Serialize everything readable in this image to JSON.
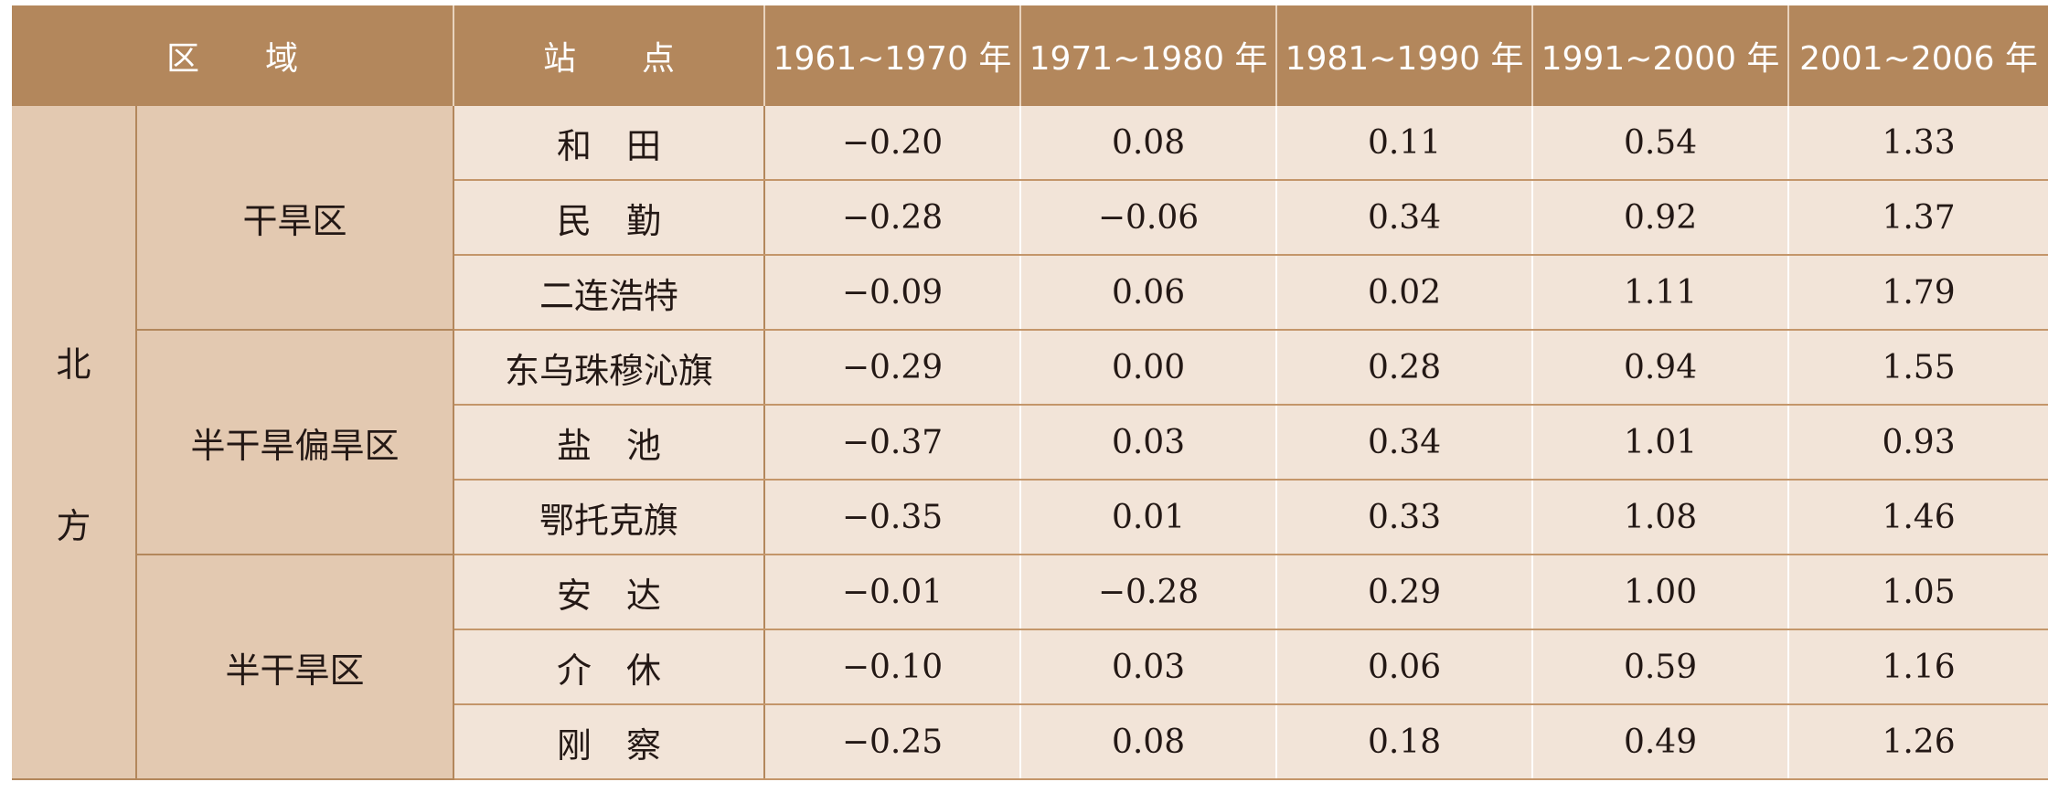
{
  "header": {
    "region": "区　　域",
    "station": "站　　点",
    "periods": [
      "1961~1970 年",
      "1971~1980 年",
      "1981~1990 年",
      "1991~2000 年",
      "2001~2006 年"
    ]
  },
  "table": {
    "macro_region": "北方",
    "groups": [
      {
        "name": "干旱区",
        "rows": [
          {
            "station": "和　田",
            "values": [
              "−0.20",
              "0.08",
              "0.11",
              "0.54",
              "1.33"
            ]
          },
          {
            "station": "民　勤",
            "values": [
              "−0.28",
              "−0.06",
              "0.34",
              "0.92",
              "1.37"
            ]
          },
          {
            "station": "二连浩特",
            "values": [
              "−0.09",
              "0.06",
              "0.02",
              "1.11",
              "1.79"
            ]
          }
        ]
      },
      {
        "name": "半干旱偏旱区",
        "rows": [
          {
            "station": "东乌珠穆沁旗",
            "values": [
              "−0.29",
              "0.00",
              "0.28",
              "0.94",
              "1.55"
            ]
          },
          {
            "station": "盐　池",
            "values": [
              "−0.37",
              "0.03",
              "0.34",
              "1.01",
              "0.93"
            ]
          },
          {
            "station": "鄂托克旗",
            "values": [
              "−0.35",
              "0.01",
              "0.33",
              "1.08",
              "1.46"
            ]
          }
        ]
      },
      {
        "name": "半干旱区",
        "rows": [
          {
            "station": "安　达",
            "values": [
              "−0.01",
              "−0.28",
              "0.29",
              "1.00",
              "1.05"
            ]
          },
          {
            "station": "介　休",
            "values": [
              "−0.10",
              "0.03",
              "0.06",
              "0.59",
              "1.16"
            ]
          },
          {
            "station": "刚　察",
            "values": [
              "−0.25",
              "0.08",
              "0.18",
              "0.49",
              "1.26"
            ]
          }
        ]
      }
    ]
  }
}
